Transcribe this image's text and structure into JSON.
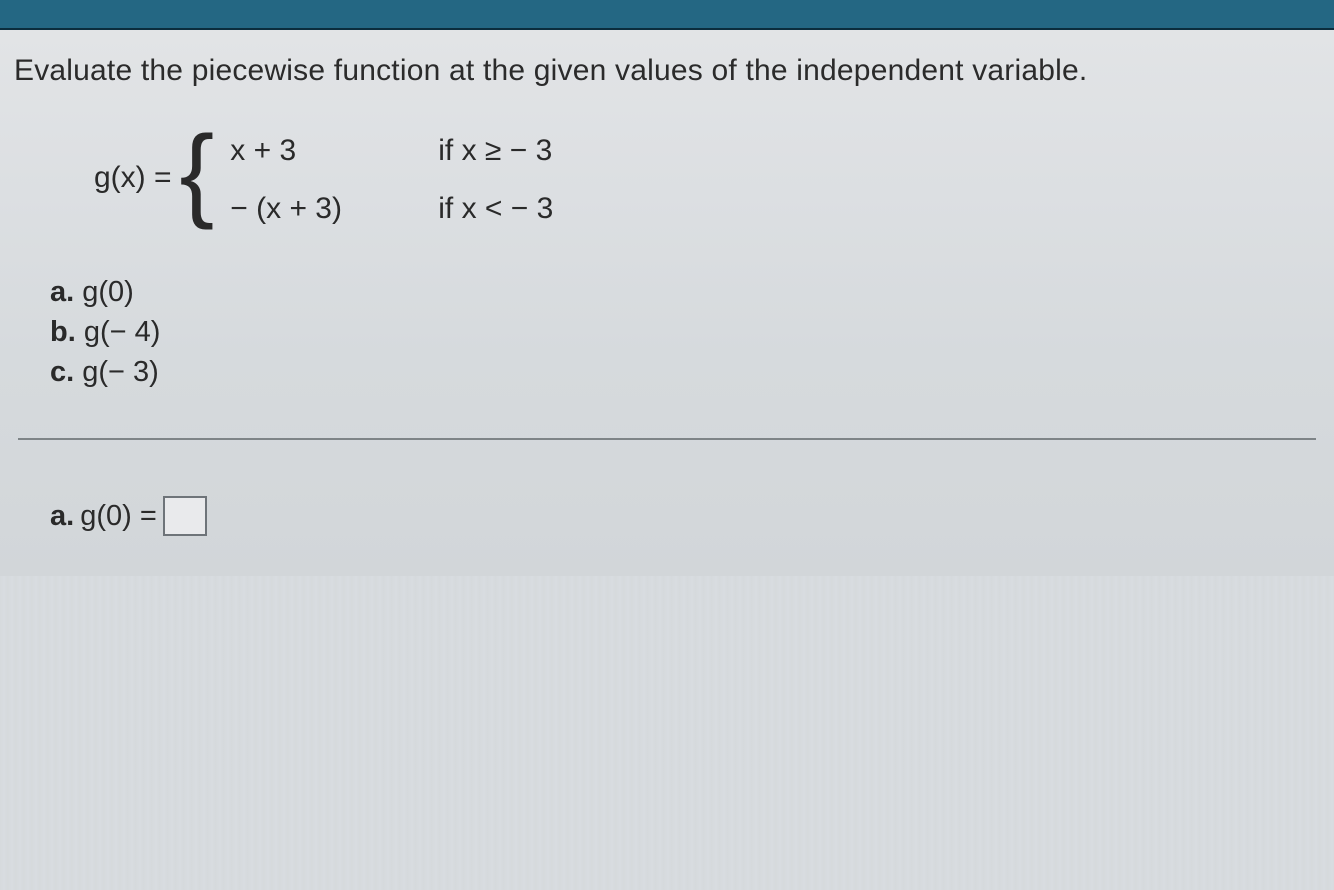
{
  "colors": {
    "header_bar": "#246783",
    "page_bg_top": "#e2e4e6",
    "page_bg_bottom": "#d2d6d9",
    "text": "#2a2a2a",
    "rule": "#7e8487",
    "input_border": "#6e7479",
    "input_bg": "#e9eaec"
  },
  "typography": {
    "body_fontsize": 30,
    "questions_fontsize": 29,
    "answer_fontsize": 29
  },
  "prompt": "Evaluate the piecewise function at the given values of the independent variable.",
  "function": {
    "name": "g(x) =",
    "cases": [
      {
        "expression": "x + 3",
        "condition": "if x ≥ − 3"
      },
      {
        "expression": "− (x + 3)",
        "condition": "if x < − 3"
      }
    ]
  },
  "questions": [
    {
      "label": "a.",
      "text": "g(0)"
    },
    {
      "label": "b.",
      "text": "g(− 4)"
    },
    {
      "label": "c.",
      "text": "g(− 3)"
    }
  ],
  "answer_line": {
    "label": "a.",
    "lhs": "g(0) =",
    "input_value": ""
  }
}
